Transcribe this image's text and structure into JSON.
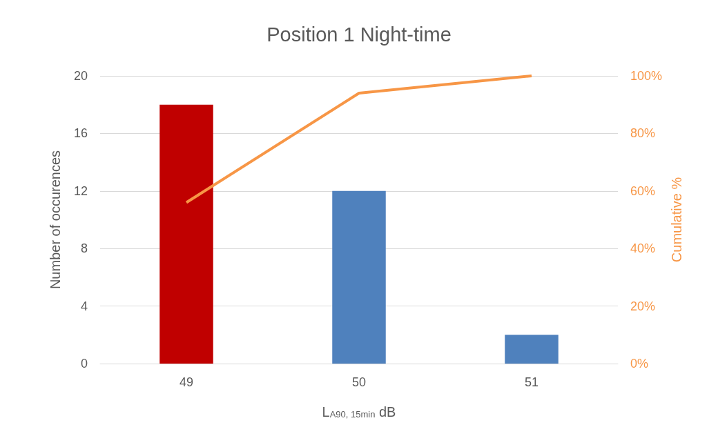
{
  "chart_data": {
    "type": "bar",
    "title": "Position 1 Night-time",
    "xlabel": "L$_{A90, 15min}$ dB",
    "ylabel": "Number of occurences",
    "y2label": "Cumulative %",
    "categories": [
      "49",
      "50",
      "51"
    ],
    "series": [
      {
        "colors": [
          "#c00000",
          "#4f81bd",
          "#4f81bd"
        ],
        "values": [
          18,
          12,
          2
        ]
      },
      {
        "type": "line",
        "axis": "y2",
        "color": "#f79646",
        "values": [
          56,
          94,
          100
        ],
        "marker": "none",
        "line_style": "solid"
      }
    ],
    "ylim": [
      0,
      20
    ],
    "yticks": [
      0,
      4,
      8,
      12,
      16,
      20
    ],
    "y2lim": [
      0,
      100
    ],
    "y2ticks": [
      {
        "value": 0,
        "label": "0%"
      },
      {
        "value": 20,
        "label": "20%"
      },
      {
        "value": 40,
        "label": "40%"
      },
      {
        "value": 60,
        "label": "60%"
      },
      {
        "value": 80,
        "label": "80%"
      },
      {
        "value": 100,
        "label": "100%"
      }
    ],
    "grid": "y"
  }
}
